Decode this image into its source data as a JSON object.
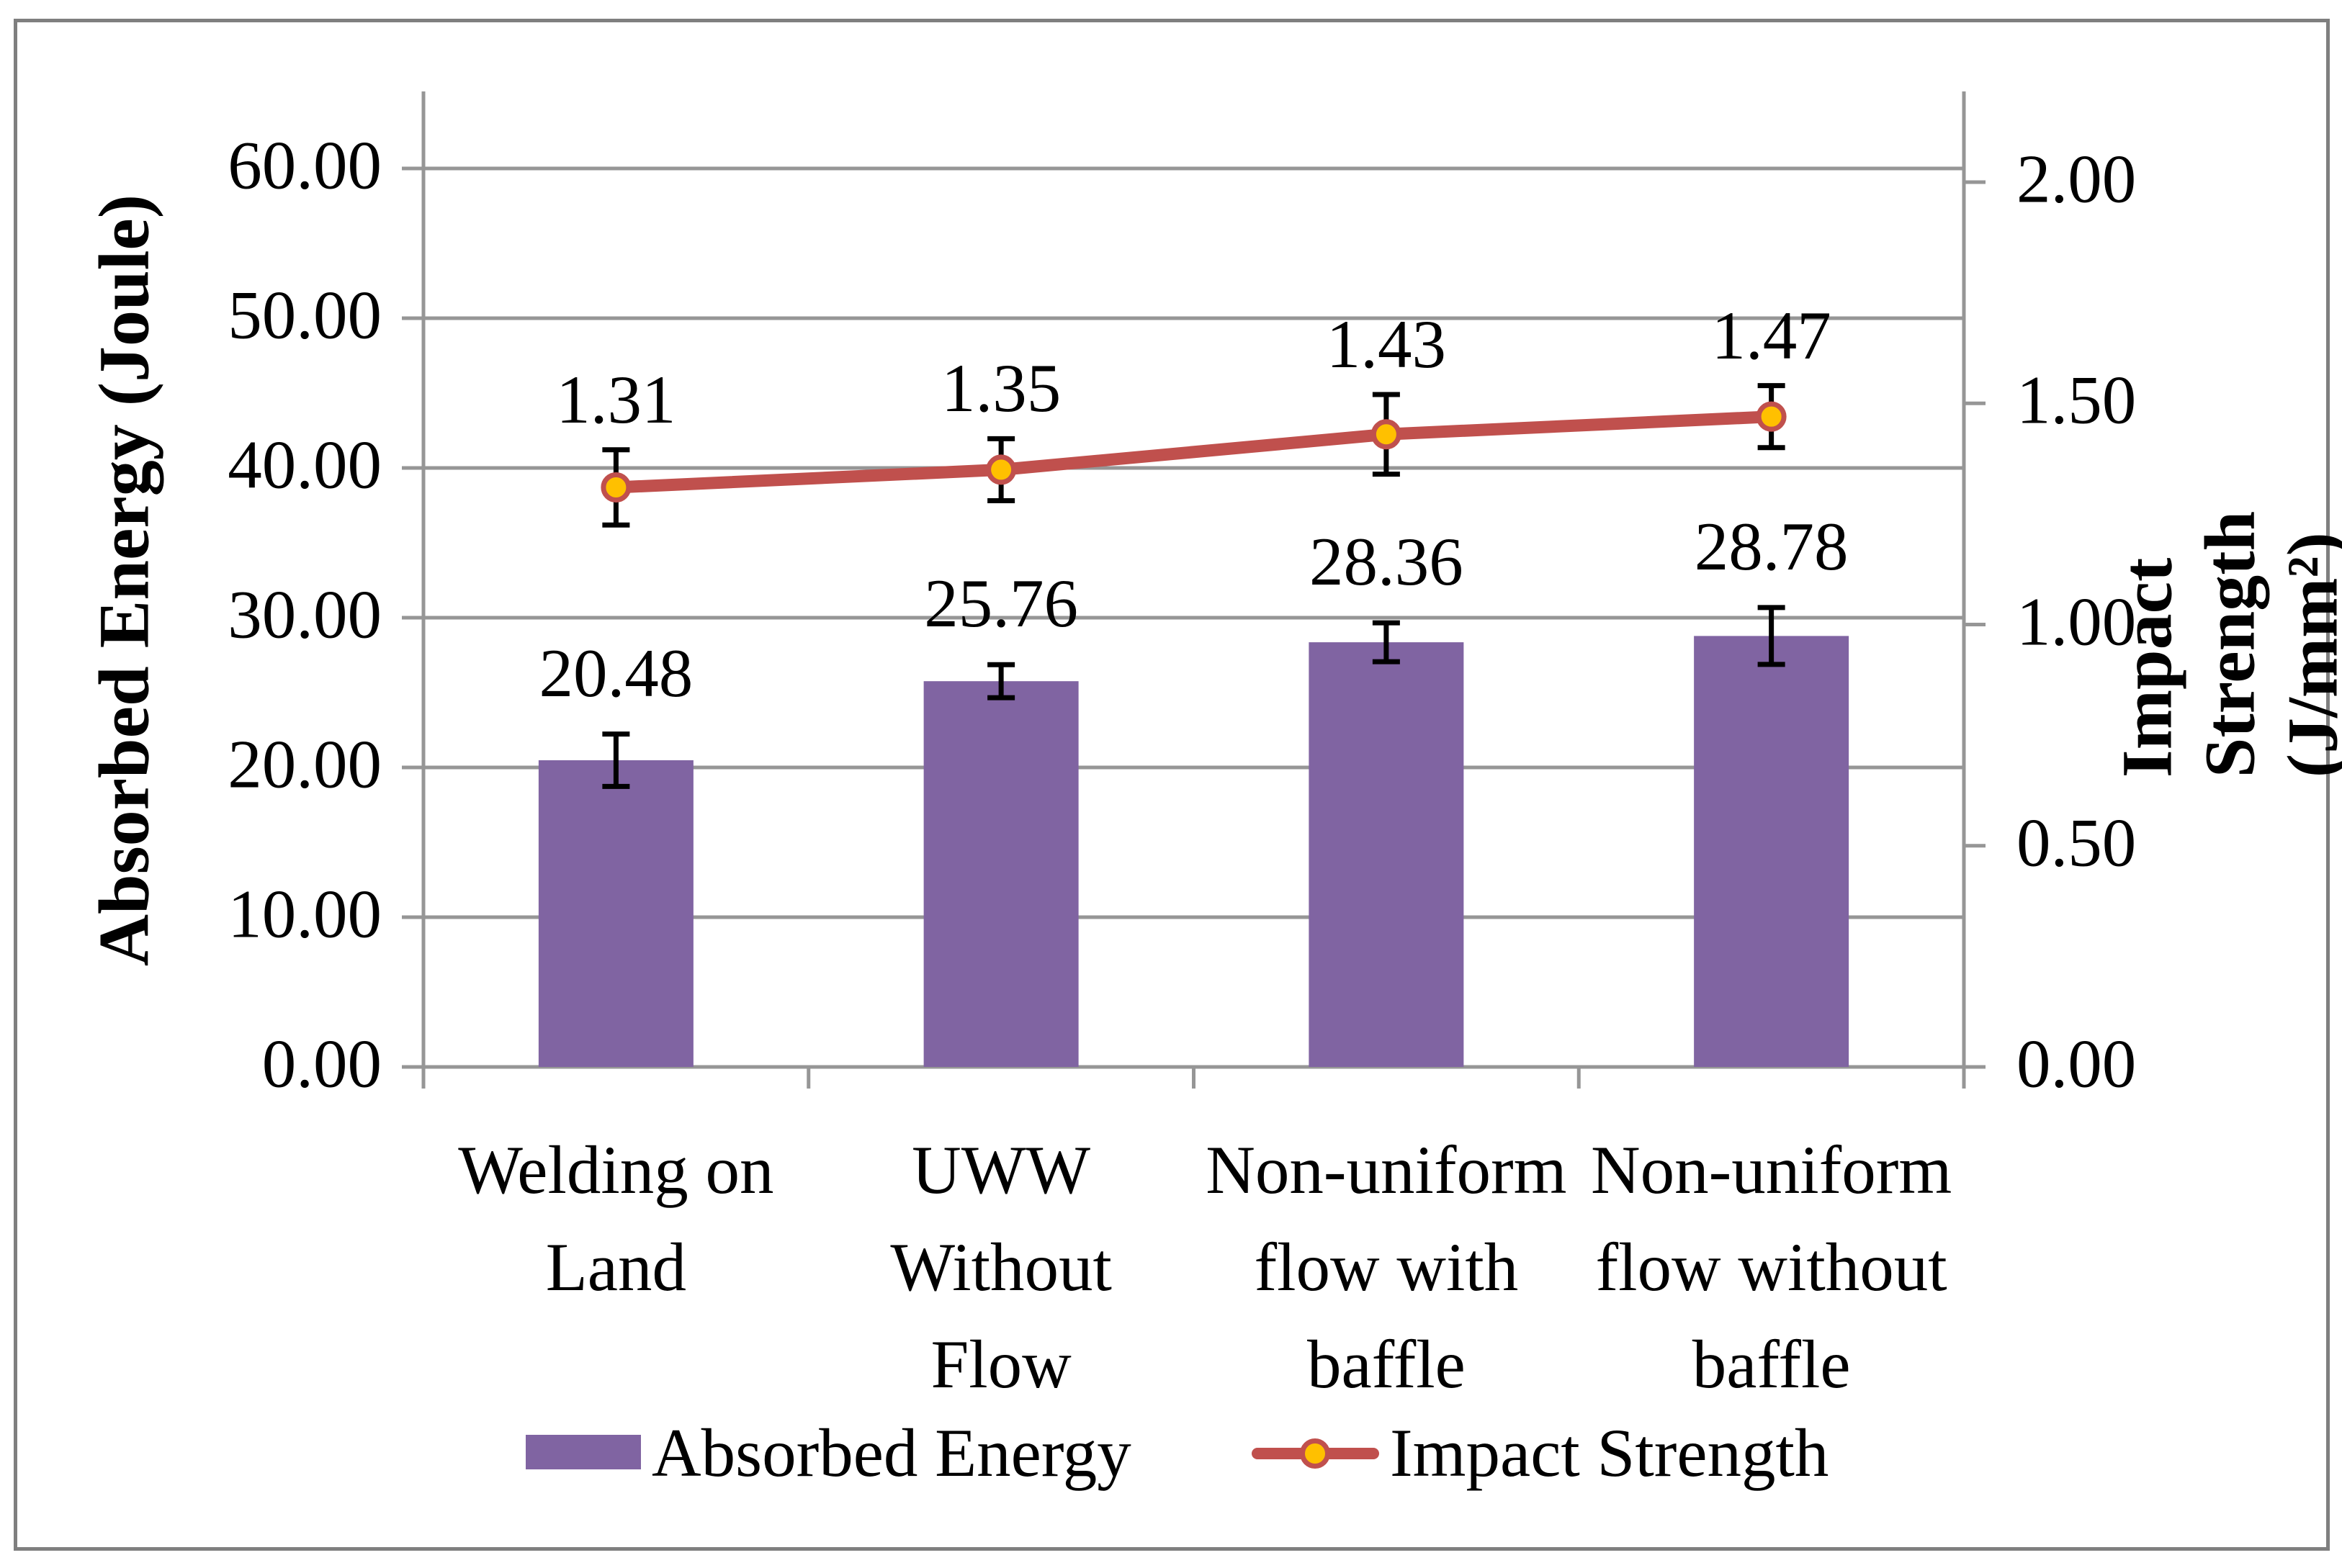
{
  "chart_data": {
    "type": "bar",
    "subtype": "combo-bar-line-dual-axis",
    "categories": [
      {
        "label": "Welding on Land",
        "lines": [
          "Welding on",
          "Land"
        ]
      },
      {
        "label": "UWW Without Flow",
        "lines": [
          "UWW",
          "Without",
          "Flow"
        ]
      },
      {
        "label": "Non-uniform flow with baffle",
        "lines": [
          "Non-uniform",
          "flow with",
          "baffle"
        ]
      },
      {
        "label": "Non-uniform flow without baffle",
        "lines": [
          "Non-uniform",
          "flow without",
          "baffle"
        ]
      }
    ],
    "series": [
      {
        "name": "Absorbed Energy",
        "type": "bar",
        "axis": "left",
        "values": [
          20.48,
          25.76,
          28.36,
          28.78
        ],
        "labels": [
          "20.48",
          "25.76",
          "28.36",
          "28.78"
        ],
        "error_bars": [
          1.75,
          1.1,
          1.3,
          1.9
        ]
      },
      {
        "name": "Impact Strength",
        "type": "line",
        "axis": "right",
        "values": [
          1.31,
          1.35,
          1.43,
          1.47
        ],
        "labels": [
          "1.31",
          "1.35",
          "1.43",
          "1.47"
        ],
        "error_bars": [
          0.085,
          0.07,
          0.09,
          0.07
        ]
      }
    ],
    "left_axis": {
      "title": "Absorbed Energy (Joule)",
      "ticks": [
        "60.00",
        "50.00",
        "40.00",
        "30.00",
        "20.00",
        "10.00",
        "0.00"
      ],
      "tick_values": [
        60,
        50,
        40,
        30,
        20,
        10,
        0
      ],
      "min": 0,
      "max": 65
    },
    "right_axis": {
      "title": "Impact Strength (J/mm²)",
      "ticks": [
        "2.00",
        "1.50",
        "1.00",
        "0.50",
        "0.00"
      ],
      "tick_values": [
        2.0,
        1.5,
        1.0,
        0.5,
        0
      ],
      "min": 0,
      "max": 2.17
    },
    "legend": [
      {
        "label": "Absorbed Energy",
        "symbol": "bar-swatch"
      },
      {
        "label": "Impact Strength",
        "symbol": "line-marker"
      }
    ],
    "legend_position": "bottom",
    "grid": true,
    "colors": {
      "bar": "#8064A2",
      "line": "#C0504D",
      "marker_fill": "#FFC000",
      "error_bar": "#000000",
      "grid": "#969696",
      "axis": "#969696",
      "frame_border": "#7f7f7f",
      "text": "#000000",
      "background": "#ffffff"
    }
  }
}
